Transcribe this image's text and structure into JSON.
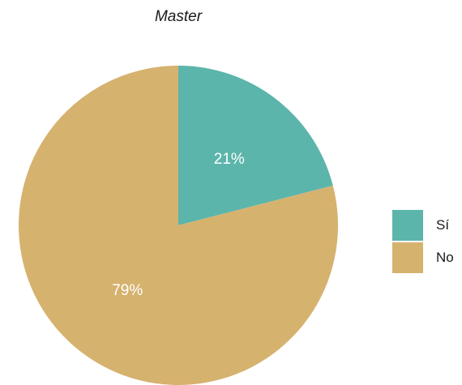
{
  "chart_data": {
    "type": "pie",
    "title": "Master",
    "slices": [
      {
        "label": "Sí",
        "value": 21,
        "display": "21%",
        "color": "#5cb5ab"
      },
      {
        "label": "No",
        "value": 79,
        "display": "79%",
        "color": "#d6b26f"
      }
    ],
    "legend_position": "right"
  }
}
